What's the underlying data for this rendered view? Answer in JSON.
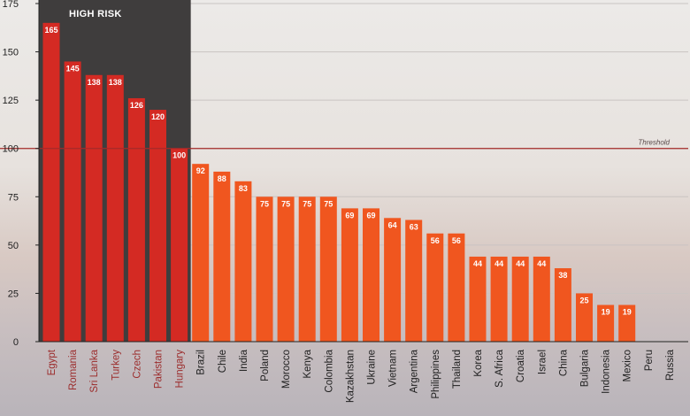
{
  "chart_data": {
    "type": "bar",
    "title": "",
    "xlabel": "",
    "ylabel": "",
    "ylim": [
      0,
      175
    ],
    "yticks": [
      0,
      25,
      50,
      75,
      100,
      125,
      150,
      175
    ],
    "grid": true,
    "high_risk_label": "HIGH RISK",
    "threshold": {
      "value": 100,
      "label": "Threshold"
    },
    "categories": [
      "Egypt",
      "Romania",
      "Sri Lanka",
      "Turkey",
      "Czech",
      "Pakistan",
      "Hungary",
      "Brazil",
      "Chile",
      "India",
      "Poland",
      "Morocco",
      "Kenya",
      "Colombia",
      "Kazakhstan",
      "Ukraine",
      "Vietnam",
      "Argentina",
      "Philippines",
      "Thailand",
      "Korea",
      "S. Africa",
      "Croatia",
      "Israel",
      "China",
      "Bulgaria",
      "Indonesia",
      "Mexico",
      "Peru",
      "Russia"
    ],
    "values": [
      165,
      145,
      138,
      138,
      126,
      120,
      100,
      92,
      88,
      83,
      75,
      75,
      75,
      75,
      69,
      69,
      64,
      63,
      56,
      56,
      44,
      44,
      44,
      44,
      38,
      25,
      19,
      19,
      null,
      null
    ],
    "high_risk_count": 7,
    "colors": {
      "high_risk_bar": "#d42a23",
      "normal_bar": "#f0561f",
      "high_risk_panel": "#3f3d3d",
      "high_risk_text": "#9c2d2d",
      "normal_text": "#1e1e1e",
      "threshold_line": "#a52a2a"
    }
  }
}
